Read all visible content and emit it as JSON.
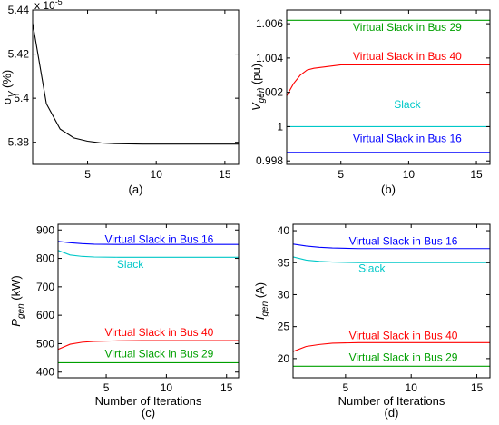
{
  "chart_data": [
    {
      "id": "a",
      "type": "line",
      "panel_label": "(a)",
      "xlabel": "",
      "ylabel": {
        "main": "σ",
        "sub": "V",
        "rest": " (%)"
      },
      "exponent": {
        "base": "x 10",
        "power": "-5"
      },
      "xlim": [
        1,
        16
      ],
      "ylim": [
        5.37,
        5.44
      ],
      "xticks": [
        5,
        10,
        15
      ],
      "yticks": [
        5.38,
        5.4,
        5.42,
        5.44
      ],
      "ytick_labels": [
        "5.38",
        "5.4",
        "5.42",
        "5.44"
      ],
      "series": [
        {
          "color": "#000000",
          "x": [
            1,
            2,
            3,
            4,
            5,
            6,
            7,
            8,
            9,
            10,
            11,
            12,
            13,
            14,
            15,
            16
          ],
          "y": [
            5.434,
            5.3975,
            5.386,
            5.382,
            5.3805,
            5.3797,
            5.3794,
            5.3793,
            5.3792,
            5.3792,
            5.3792,
            5.3792,
            5.3792,
            5.3792,
            5.3792,
            5.3792
          ]
        }
      ],
      "annotations": []
    },
    {
      "id": "b",
      "type": "line",
      "panel_label": "(b)",
      "xlabel": "",
      "ylabel": {
        "main": "V",
        "sub": "gen",
        "rest": " (pu)"
      },
      "xlim": [
        1,
        16
      ],
      "ylim": [
        0.9978,
        1.0068
      ],
      "xticks": [
        5,
        10,
        15
      ],
      "yticks": [
        0.998,
        1.0,
        1.002,
        1.004,
        1.006
      ],
      "ytick_labels": [
        "0.998",
        "1",
        "1.002",
        "1.004",
        "1.006"
      ],
      "series": [
        {
          "color": "#00a000",
          "x": [
            1,
            16
          ],
          "y": [
            1.0062,
            1.0062
          ]
        },
        {
          "color": "#ff0000",
          "x": [
            1,
            1.5,
            2,
            2.5,
            3,
            4,
            5,
            6,
            8,
            10,
            13,
            16
          ],
          "y": [
            1.0018,
            1.0025,
            1.003,
            1.0033,
            1.0034,
            1.0035,
            1.0036,
            1.0036,
            1.0036,
            1.0036,
            1.0036,
            1.0036
          ]
        },
        {
          "color": "#00c8c8",
          "x": [
            1,
            16
          ],
          "y": [
            1.0,
            1.0
          ]
        },
        {
          "color": "#0000ff",
          "x": [
            1,
            16
          ],
          "y": [
            0.9985,
            0.9985
          ]
        }
      ],
      "annotations": [
        {
          "text": "Virtual Slack in Bus 29",
          "color": "#00a000",
          "x": 9.9,
          "y": 1.0058
        },
        {
          "text": "Virtual Slack in Bus 40",
          "color": "#ff0000",
          "x": 9.9,
          "y": 1.0041
        },
        {
          "text": "Slack",
          "color": "#00c8c8",
          "x": 9.9,
          "y": 1.0013
        },
        {
          "text": "Virtual Slack in Bus 16",
          "color": "#0000ff",
          "x": 9.9,
          "y": 0.9993
        }
      ]
    },
    {
      "id": "c",
      "type": "line",
      "panel_label": "(c)",
      "xlabel": "Number of Iterations",
      "ylabel": {
        "main": "P",
        "sub": "gen",
        "rest": " (kW)"
      },
      "xlim": [
        1,
        16
      ],
      "ylim": [
        380,
        920
      ],
      "xticks": [
        5,
        10,
        15
      ],
      "yticks": [
        400,
        500,
        600,
        700,
        800,
        900
      ],
      "ytick_labels": [
        "400",
        "500",
        "600",
        "700",
        "800",
        "900"
      ],
      "series": [
        {
          "color": "#0000ff",
          "x": [
            1,
            2,
            3,
            4,
            6,
            8,
            16
          ],
          "y": [
            860,
            855,
            852,
            850,
            849,
            849,
            849
          ]
        },
        {
          "color": "#00c8c8",
          "x": [
            1,
            2,
            3,
            4,
            6,
            8,
            16
          ],
          "y": [
            828,
            812,
            807,
            805,
            804,
            804,
            804
          ]
        },
        {
          "color": "#ff0000",
          "x": [
            1,
            2,
            3,
            4,
            6,
            8,
            16
          ],
          "y": [
            480,
            498,
            505,
            508,
            510,
            511,
            511
          ]
        },
        {
          "color": "#00a000",
          "x": [
            1,
            16
          ],
          "y": [
            433,
            433
          ]
        }
      ],
      "annotations": [
        {
          "text": "Virtual Slack in Bus 16",
          "color": "#0000ff",
          "x": 9.4,
          "y": 868
        },
        {
          "text": "Slack",
          "color": "#00c8c8",
          "x": 7.0,
          "y": 780
        },
        {
          "text": "Virtual Slack in Bus 40",
          "color": "#ff0000",
          "x": 9.4,
          "y": 540
        },
        {
          "text": "Virtual Slack in Bus 29",
          "color": "#00a000",
          "x": 9.4,
          "y": 465
        }
      ]
    },
    {
      "id": "d",
      "type": "line",
      "panel_label": "(d)",
      "xlabel": "Number of Iterations",
      "ylabel": {
        "main": "I",
        "sub": "gen",
        "rest": " (A)"
      },
      "xlim": [
        1,
        16
      ],
      "ylim": [
        17,
        41
      ],
      "xticks": [
        5,
        10,
        15
      ],
      "yticks": [
        20,
        25,
        30,
        35,
        40
      ],
      "ytick_labels": [
        "20",
        "25",
        "30",
        "35",
        "40"
      ],
      "series": [
        {
          "color": "#0000ff",
          "x": [
            1,
            2,
            3,
            4,
            6,
            8,
            16
          ],
          "y": [
            37.9,
            37.6,
            37.4,
            37.3,
            37.2,
            37.2,
            37.2
          ]
        },
        {
          "color": "#00c8c8",
          "x": [
            1,
            2,
            3,
            4,
            6,
            8,
            16
          ],
          "y": [
            35.9,
            35.4,
            35.2,
            35.1,
            35.0,
            35.0,
            35.0
          ]
        },
        {
          "color": "#ff0000",
          "x": [
            1,
            2,
            3,
            4,
            6,
            8,
            16
          ],
          "y": [
            21.1,
            21.9,
            22.2,
            22.4,
            22.5,
            22.5,
            22.5
          ]
        },
        {
          "color": "#00a000",
          "x": [
            1,
            16
          ],
          "y": [
            18.8,
            18.8
          ]
        }
      ],
      "annotations": [
        {
          "text": "Virtual Slack in Bus 16",
          "color": "#0000ff",
          "x": 9.4,
          "y": 38.4
        },
        {
          "text": "Slack",
          "color": "#00c8c8",
          "x": 7.0,
          "y": 34.1
        },
        {
          "text": "Virtual Slack in Bus 40",
          "color": "#ff0000",
          "x": 9.4,
          "y": 23.6
        },
        {
          "text": "Virtual Slack in Bus 29",
          "color": "#00a000",
          "x": 9.4,
          "y": 20.2
        }
      ]
    }
  ]
}
